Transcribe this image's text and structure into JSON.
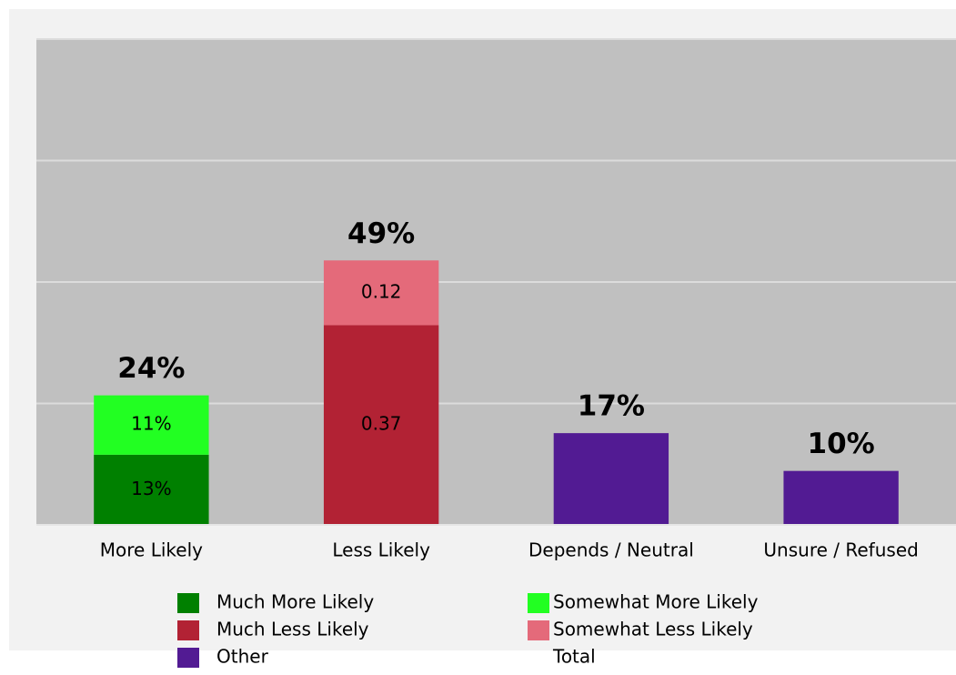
{
  "chart_data": {
    "type": "bar",
    "stacked": true,
    "categories": [
      "More Likely",
      "Less Likely",
      "Depends / Neutral",
      "Unsure / Refused"
    ],
    "series": [
      {
        "name": "Much More Likely",
        "color": "#008000",
        "values": [
          13,
          null,
          null,
          null
        ],
        "value_labels": [
          "13%",
          null,
          null,
          null
        ]
      },
      {
        "name": "Somewhat More Likely",
        "color": "#22ff22",
        "values": [
          11,
          null,
          null,
          null
        ],
        "value_labels": [
          "11%",
          null,
          null,
          null
        ]
      },
      {
        "name": "Much Less Likely",
        "color": "#b22234",
        "values": [
          null,
          37,
          null,
          null
        ],
        "value_labels": [
          null,
          "0.37",
          null,
          null
        ]
      },
      {
        "name": "Somewhat Less Likely",
        "color": "#e46a7a",
        "values": [
          null,
          12,
          null,
          null
        ],
        "value_labels": [
          null,
          "0.12",
          null,
          null
        ]
      },
      {
        "name": "Other",
        "color": "#521b93",
        "values": [
          null,
          null,
          17,
          10
        ]
      },
      {
        "name": "Total",
        "values": [
          24,
          49,
          17,
          10
        ],
        "value_labels": [
          "24%",
          "49%",
          "17%",
          "10%"
        ]
      }
    ],
    "ylim": [
      0,
      90
    ],
    "yticks": [
      0,
      22.5,
      45,
      67.5,
      90
    ],
    "grid": true
  }
}
